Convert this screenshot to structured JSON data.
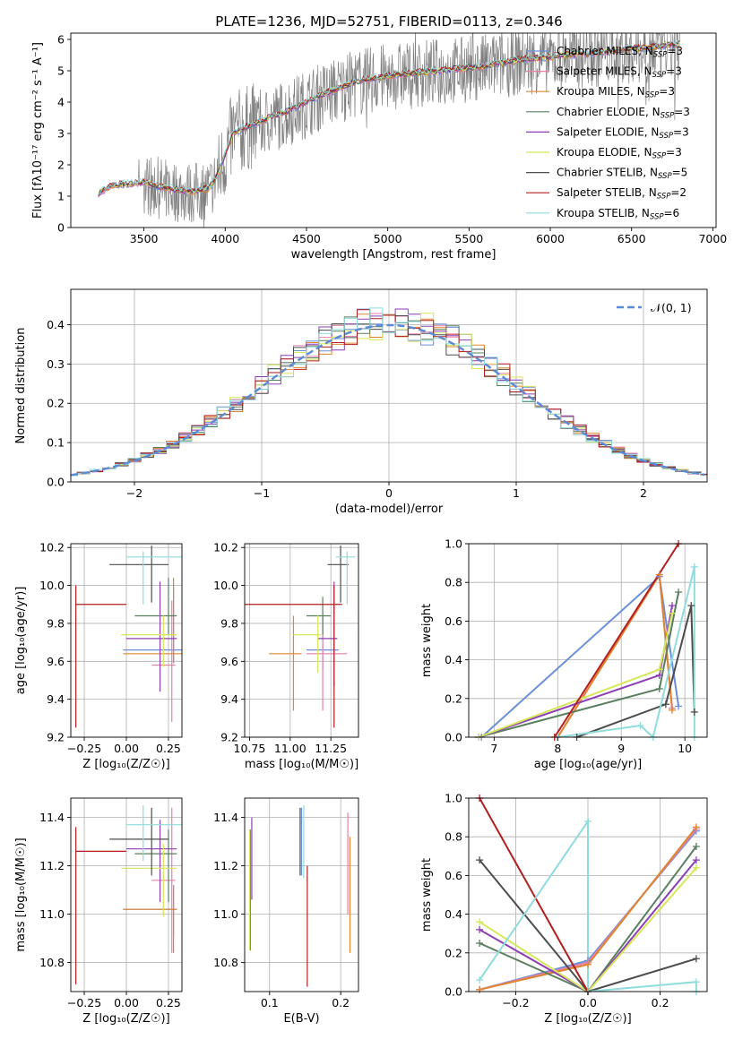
{
  "figure": {
    "title": "PLATE=1236, MJD=52751, FIBERID=0113, z=0.346"
  },
  "legend_entries": [
    {
      "base": "Chabrier MILES, N",
      "sub": "SSP",
      "tail": "=3",
      "color": "#6b8fd9"
    },
    {
      "base": "Salpeter MILES, N",
      "sub": "SSP",
      "tail": "=3",
      "color": "#e87fa8"
    },
    {
      "base": "Kroupa MILES, N",
      "sub": "SSP",
      "tail": "=3",
      "color": "#e0852e"
    },
    {
      "base": "Chabrier ELODIE, N",
      "sub": "SSP",
      "tail": "=3",
      "color": "#5a7f5f"
    },
    {
      "base": "Salpeter ELODIE, N",
      "sub": "SSP",
      "tail": "=3",
      "color": "#8e3fb5"
    },
    {
      "base": "Kroupa ELODIE, N",
      "sub": "SSP",
      "tail": "=3",
      "color": "#d6e75a"
    },
    {
      "base": "Chabrier STELIB, N",
      "sub": "SSP",
      "tail": "=5",
      "color": "#4d4d4d"
    },
    {
      "base": "Salpeter STELIB, N",
      "sub": "SSP",
      "tail": "=2",
      "color": "#b31f1f"
    },
    {
      "base": "Kroupa STELIB, N",
      "sub": "SSP",
      "tail": "=6",
      "color": "#8fdcdc"
    }
  ],
  "chart_data": [
    {
      "type": "line",
      "panel": "spectrum",
      "xlabel": "wavelength [Angstrom, rest frame]",
      "ylabel": "Flux [fλ10⁻¹⁷ erg cm⁻² s⁻¹ A⁻¹]",
      "xlim": [
        3050,
        7020
      ],
      "ylim": [
        0,
        6.2
      ],
      "xticks": [
        "3500",
        "4000",
        "4500",
        "5000",
        "5500",
        "6000",
        "6500",
        "7000"
      ],
      "yticks": [
        "0",
        "1",
        "2",
        "3",
        "4",
        "5",
        "6"
      ],
      "grid": false,
      "legend_position": "top-right",
      "data_color": "#808080",
      "continuum_x": [
        3220,
        3300,
        3400,
        3500,
        3600,
        3700,
        3800,
        3900,
        3960,
        4050,
        4200,
        4400,
        4600,
        4800,
        5000,
        5200,
        5400,
        5600,
        5800,
        6000,
        6200,
        6400,
        6600,
        6800
      ],
      "continuum_y": [
        1.05,
        1.3,
        1.35,
        1.4,
        1.25,
        1.15,
        1.1,
        1.2,
        1.7,
        3.0,
        3.3,
        3.7,
        4.2,
        4.6,
        4.8,
        4.9,
        5.0,
        5.1,
        5.3,
        5.4,
        5.5,
        5.6,
        5.7,
        5.8
      ]
    },
    {
      "type": "line",
      "panel": "residual-distribution",
      "xlabel": "(data-model)/error",
      "ylabel": "Normed distribution",
      "xlim": [
        -2.5,
        2.5
      ],
      "ylim": [
        0,
        0.49
      ],
      "xticks": [
        "−2",
        "−1",
        "0",
        "1",
        "2"
      ],
      "yticks": [
        "0.0",
        "0.1",
        "0.2",
        "0.3",
        "0.4"
      ],
      "grid": true,
      "legend_position": "top-right",
      "reference_curve": {
        "name": "𝒩(0, 1)",
        "mean": 0,
        "sigma": 1,
        "color": "#5b8ad6"
      },
      "bin_width": 0.1
    },
    {
      "type": "scatter",
      "panel": "age-vs-metallicity",
      "xlabel": "Z [log₁₀(Z/Z☉)]",
      "ylabel": "age  [log₁₀(age/yr)]",
      "xlim": [
        -0.33,
        0.33
      ],
      "ylim": [
        9.2,
        10.22
      ],
      "xticks": [
        "−0.25",
        "0.00",
        "0.25"
      ],
      "yticks": [
        "9.2",
        "9.4",
        "9.6",
        "9.8",
        "10.0",
        "10.2"
      ],
      "grid": true,
      "points": [
        {
          "series": "Chabrier MILES",
          "x": 0.28,
          "y": 9.66,
          "xerr": [
            0.3,
            0.15
          ],
          "yerr": [
            0.07,
            0.35
          ]
        },
        {
          "series": "Salpeter MILES",
          "x": 0.27,
          "y": 9.58,
          "xerr": [
            0.12,
            0.02
          ],
          "yerr": [
            0.3,
            0.34
          ]
        },
        {
          "series": "Kroupa MILES",
          "x": 0.28,
          "y": 9.64,
          "xerr": [
            0.3,
            0.15
          ],
          "yerr": [
            0.05,
            0.4
          ]
        },
        {
          "series": "Chabrier ELODIE",
          "x": 0.25,
          "y": 9.84,
          "xerr": [
            0.2,
            0.05
          ],
          "yerr": [
            0.1,
            0.2
          ]
        },
        {
          "series": "Salpeter ELODIE",
          "x": 0.2,
          "y": 9.72,
          "xerr": [
            0.2,
            0.1
          ],
          "yerr": [
            0.28,
            0.3
          ]
        },
        {
          "series": "Kroupa ELODIE",
          "x": 0.22,
          "y": 9.74,
          "xerr": [
            0.25,
            0.08
          ],
          "yerr": [
            0.17,
            0.1
          ]
        },
        {
          "series": "Chabrier STELIB",
          "x": 0.15,
          "y": 10.11,
          "xerr": [
            0.25,
            0.1
          ],
          "yerr": [
            0.2,
            0.1
          ]
        },
        {
          "series": "Salpeter STELIB",
          "x": -0.3,
          "y": 9.9,
          "xerr": [
            0,
            0.3
          ],
          "yerr": [
            0.65,
            0.1
          ]
        },
        {
          "series": "Kroupa STELIB",
          "x": 0.1,
          "y": 10.15,
          "xerr": [
            0.1,
            0.25
          ],
          "yerr": [
            0.25,
            0.03
          ]
        }
      ]
    },
    {
      "type": "scatter",
      "panel": "age-vs-mass",
      "xlabel": "mass [log₁₀(M/M☉)]",
      "ylabel": "",
      "xlim": [
        10.72,
        11.42
      ],
      "ylim": [
        9.2,
        10.22
      ],
      "xticks": [
        "10.75",
        "11.00",
        "11.25"
      ],
      "yticks": [
        "9.2",
        "9.4",
        "9.6",
        "9.8",
        "10.0",
        "10.2"
      ],
      "grid": true,
      "points": [
        {
          "series": "Chabrier MILES",
          "x": 11.2,
          "y": 9.66,
          "xerr": [
            0.1,
            0.1
          ],
          "yerr": [
            0.1,
            0.2
          ]
        },
        {
          "series": "Salpeter MILES",
          "x": 11.2,
          "y": 9.64,
          "xerr": [
            0.1,
            0.15
          ],
          "yerr": [
            0.3,
            0.2
          ]
        },
        {
          "series": "Kroupa MILES",
          "x": 11.02,
          "y": 9.64,
          "xerr": [
            0.15,
            0.05
          ],
          "yerr": [
            0.3,
            0.2
          ]
        },
        {
          "series": "Chabrier ELODIE",
          "x": 11.2,
          "y": 9.84,
          "xerr": [
            0.1,
            0.05
          ],
          "yerr": [
            0.1,
            0.1
          ]
        },
        {
          "series": "Salpeter ELODIE",
          "x": 11.27,
          "y": 9.72,
          "xerr": [
            0.1,
            0.02
          ],
          "yerr": [
            0.25,
            0.3
          ]
        },
        {
          "series": "Kroupa ELODIE",
          "x": 11.17,
          "y": 9.74,
          "xerr": [
            0.15,
            0.02
          ],
          "yerr": [
            0.2,
            0.1
          ]
        },
        {
          "series": "Chabrier STELIB",
          "x": 11.31,
          "y": 10.11,
          "xerr": [
            0.08,
            0.05
          ],
          "yerr": [
            0.2,
            0.1
          ]
        },
        {
          "series": "Salpeter STELIB",
          "x": 11.27,
          "y": 9.9,
          "xerr": [
            0.55,
            0.05
          ],
          "yerr": [
            0.65,
            0.1
          ]
        },
        {
          "series": "Kroupa STELIB",
          "x": 11.35,
          "y": 10.15,
          "xerr": [
            0.07,
            0.05
          ],
          "yerr": [
            0.25,
            0.03
          ]
        }
      ]
    },
    {
      "type": "line",
      "panel": "mass-weight-vs-age",
      "xlabel": "age  [log₁₀(age/yr)]",
      "ylabel": "mass weight",
      "xlim": [
        6.6,
        10.35
      ],
      "ylim": [
        0,
        1
      ],
      "xticks": [
        "7",
        "8",
        "9",
        "10"
      ],
      "yticks": [
        "0.0",
        "0.2",
        "0.4",
        "0.6",
        "0.8",
        "1.0"
      ],
      "grid": true,
      "series": [
        {
          "name": "Chabrier MILES",
          "x": [
            6.8,
            9.6,
            9.9
          ],
          "y": [
            0.0,
            0.83,
            0.16
          ]
        },
        {
          "name": "Salpeter MILES",
          "x": [
            8.0,
            9.6,
            9.8
          ],
          "y": [
            0.0,
            0.84,
            0.15
          ]
        },
        {
          "name": "Kroupa MILES",
          "x": [
            8.0,
            9.6,
            9.8
          ],
          "y": [
            0.0,
            0.84,
            0.14
          ]
        },
        {
          "name": "Chabrier ELODIE",
          "x": [
            6.75,
            9.6,
            9.9
          ],
          "y": [
            0.0,
            0.25,
            0.75
          ]
        },
        {
          "name": "Salpeter ELODIE",
          "x": [
            6.75,
            9.6,
            9.8
          ],
          "y": [
            0.0,
            0.32,
            0.68
          ]
        },
        {
          "name": "Kroupa ELODIE",
          "x": [
            6.75,
            9.6,
            9.8
          ],
          "y": [
            0.0,
            0.35,
            0.64
          ]
        },
        {
          "name": "Chabrier STELIB",
          "x": [
            8.3,
            9.7,
            10.1,
            10.15
          ],
          "y": [
            0.0,
            0.17,
            0.68,
            0.13
          ]
        },
        {
          "name": "Salpeter STELIB",
          "x": [
            7.95,
            9.9
          ],
          "y": [
            0.0,
            1.0
          ]
        },
        {
          "name": "Kroupa STELIB",
          "x": [
            8.0,
            9.3,
            9.5,
            10.15,
            10.15
          ],
          "y": [
            0.0,
            0.06,
            0.0,
            0.88,
            0.0
          ]
        }
      ]
    },
    {
      "type": "scatter",
      "panel": "mass-vs-metallicity",
      "xlabel": "Z [log₁₀(Z/Z☉)]",
      "ylabel": "mass [log₁₀(M/M☉)]",
      "xlim": [
        -0.33,
        0.33
      ],
      "ylim": [
        10.68,
        11.48
      ],
      "xticks": [
        "−0.25",
        "0.00",
        "0.25"
      ],
      "yticks": [
        "10.8",
        "11.0",
        "11.2",
        "11.4"
      ],
      "grid": true,
      "points": [
        {
          "series": "Chabrier MILES",
          "x": 0.28,
          "y": 11.02,
          "xerr": [
            0.3,
            0.02
          ],
          "yerr": [
            0.1,
            0.1
          ]
        },
        {
          "series": "Salpeter MILES",
          "x": 0.27,
          "y": 11.14,
          "xerr": [
            0.12,
            0.02
          ],
          "yerr": [
            0.3,
            0.3
          ]
        },
        {
          "series": "Kroupa MILES",
          "x": 0.28,
          "y": 11.02,
          "xerr": [
            0.3,
            0.02
          ],
          "yerr": [
            0.18,
            0.1
          ]
        },
        {
          "series": "Chabrier ELODIE",
          "x": 0.25,
          "y": 11.25,
          "xerr": [
            0.2,
            0.05
          ],
          "yerr": [
            0.2,
            0.1
          ]
        },
        {
          "series": "Salpeter ELODIE",
          "x": 0.2,
          "y": 11.27,
          "xerr": [
            0.2,
            0.1
          ],
          "yerr": [
            0.22,
            0.12
          ]
        },
        {
          "series": "Kroupa ELODIE",
          "x": 0.22,
          "y": 11.19,
          "xerr": [
            0.25,
            0.08
          ],
          "yerr": [
            0.2,
            0.1
          ]
        },
        {
          "series": "Chabrier STELIB",
          "x": 0.15,
          "y": 11.31,
          "xerr": [
            0.25,
            0.1
          ],
          "yerr": [
            0.15,
            0.13
          ]
        },
        {
          "series": "Salpeter STELIB",
          "x": -0.3,
          "y": 11.26,
          "xerr": [
            0,
            0.3
          ],
          "yerr": [
            0.55,
            0.1
          ]
        },
        {
          "series": "Kroupa STELIB",
          "x": 0.1,
          "y": 11.37,
          "xerr": [
            0.1,
            0.25
          ],
          "yerr": [
            0.15,
            0.08
          ]
        }
      ]
    },
    {
      "type": "scatter",
      "panel": "mass-vs-extinction",
      "xlabel": "E(B-V)",
      "ylabel": "",
      "xlim": [
        0.065,
        0.225
      ],
      "ylim": [
        10.68,
        11.48
      ],
      "xticks": [
        "0.1",
        "0.2"
      ],
      "yticks": [
        "10.8",
        "11.0",
        "11.2",
        "11.4"
      ],
      "grid": true,
      "points": [
        {
          "series": "Chabrier MILES",
          "x": 0.145,
          "y": 11.3,
          "xerr": [
            0,
            0
          ],
          "yerr": [
            0.14,
            0.14
          ]
        },
        {
          "series": "Salpeter MILES",
          "x": 0.21,
          "y": 11.2,
          "xerr": [
            0,
            0
          ],
          "yerr": [
            0.2,
            0.22
          ]
        },
        {
          "series": "Kroupa MILES",
          "x": 0.213,
          "y": 11.1,
          "xerr": [
            0,
            0
          ],
          "yerr": [
            0.26,
            0.22
          ]
        },
        {
          "series": "Chabrier ELODIE",
          "x": 0.073,
          "y": 11.1,
          "xerr": [
            0,
            0
          ],
          "yerr": [
            0.25,
            0.25
          ]
        },
        {
          "series": "Salpeter ELODIE",
          "x": 0.075,
          "y": 11.22,
          "xerr": [
            0,
            0
          ],
          "yerr": [
            0.16,
            0.18
          ]
        },
        {
          "series": "Kroupa ELODIE",
          "x": 0.072,
          "y": 11.1,
          "xerr": [
            0,
            0
          ],
          "yerr": [
            0.25,
            0.25
          ]
        },
        {
          "series": "Chabrier STELIB",
          "x": 0.143,
          "y": 11.3,
          "xerr": [
            0,
            0
          ],
          "yerr": [
            0.14,
            0.14
          ]
        },
        {
          "series": "Salpeter STELIB",
          "x": 0.153,
          "y": 10.95,
          "xerr": [
            0,
            0
          ],
          "yerr": [
            0.25,
            0.25
          ]
        },
        {
          "series": "Kroupa STELIB",
          "x": 0.148,
          "y": 11.3,
          "xerr": [
            0,
            0
          ],
          "yerr": [
            0.15,
            0.15
          ]
        }
      ]
    },
    {
      "type": "line",
      "panel": "mass-weight-vs-metallicity",
      "xlabel": "Z [log₁₀(Z/Z☉)]",
      "ylabel": "mass weight",
      "xlim": [
        -0.33,
        0.33
      ],
      "ylim": [
        0,
        1
      ],
      "xticks": [
        "−0.2",
        "0.0",
        "0.2"
      ],
      "yticks": [
        "0.0",
        "0.2",
        "0.4",
        "0.6",
        "0.8",
        "1.0"
      ],
      "grid": true,
      "series": [
        {
          "name": "Chabrier MILES",
          "x": [
            -0.3,
            0.0,
            0.3
          ],
          "y": [
            0.01,
            0.16,
            0.83
          ]
        },
        {
          "name": "Salpeter MILES",
          "x": [
            -0.3,
            0.0,
            0.3
          ],
          "y": [
            0.01,
            0.15,
            0.84
          ]
        },
        {
          "name": "Kroupa MILES",
          "x": [
            -0.3,
            0.0,
            0.3
          ],
          "y": [
            0.01,
            0.14,
            0.85
          ]
        },
        {
          "name": "Chabrier ELODIE",
          "x": [
            -0.3,
            0.0,
            0.3
          ],
          "y": [
            0.25,
            0.0,
            0.75
          ]
        },
        {
          "name": "Salpeter ELODIE",
          "x": [
            -0.3,
            0.0,
            0.3
          ],
          "y": [
            0.32,
            0.0,
            0.68
          ]
        },
        {
          "name": "Kroupa ELODIE",
          "x": [
            -0.3,
            0.0,
            0.3
          ],
          "y": [
            0.36,
            0.0,
            0.64
          ]
        },
        {
          "name": "Chabrier STELIB",
          "x": [
            -0.3,
            0.0,
            0.3
          ],
          "y": [
            0.68,
            0.0,
            0.17
          ]
        },
        {
          "name": "Salpeter STELIB",
          "x": [
            -0.3,
            0.0
          ],
          "y": [
            1.0,
            0.0
          ]
        },
        {
          "name": "Kroupa STELIB",
          "x": [
            -0.3,
            0.0,
            0.0,
            0.3,
            0.3
          ],
          "y": [
            0.06,
            0.88,
            0.0,
            0.05,
            0.0
          ]
        }
      ]
    }
  ]
}
